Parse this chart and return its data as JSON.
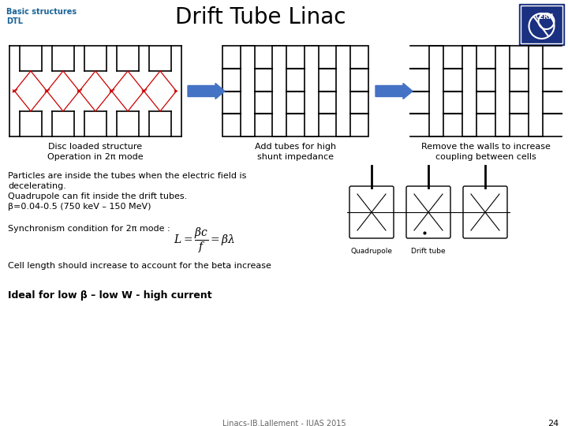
{
  "title": "Drift Tube Linac",
  "subtitle_line1": "Basic structures",
  "subtitle_line2": "DTL",
  "bg_color": "#ffffff",
  "title_color": "#000000",
  "subtitle_color": "#1a6496",
  "label1_line1": "Disc loaded structure",
  "label1_line2": "Operation in 2π mode",
  "label2_line1": "Add tubes for high",
  "label2_line2": "shunt impedance",
  "label3_line1": "Remove the walls to increase",
  "label3_line2": "coupling between cells",
  "body_text": [
    "Particles are inside the tubes when the electric field is",
    "decelerating.",
    "Quadrupole can fit inside the drift tubes.",
    "β=0.04-0.5 (750 keV – 150 MeV)"
  ],
  "sync_text": "Synchronism condition for 2π mode :   ",
  "cell_text": "Cell length should increase to account for the beta increase",
  "bold_text": "Ideal for low β – low W - high current",
  "footer_text": "Linacs-JB.Lallement - JUAS 2015",
  "page_num": "24",
  "arrow_color": "#4472c4",
  "diagram_color": "#000000",
  "red_color": "#cc0000"
}
